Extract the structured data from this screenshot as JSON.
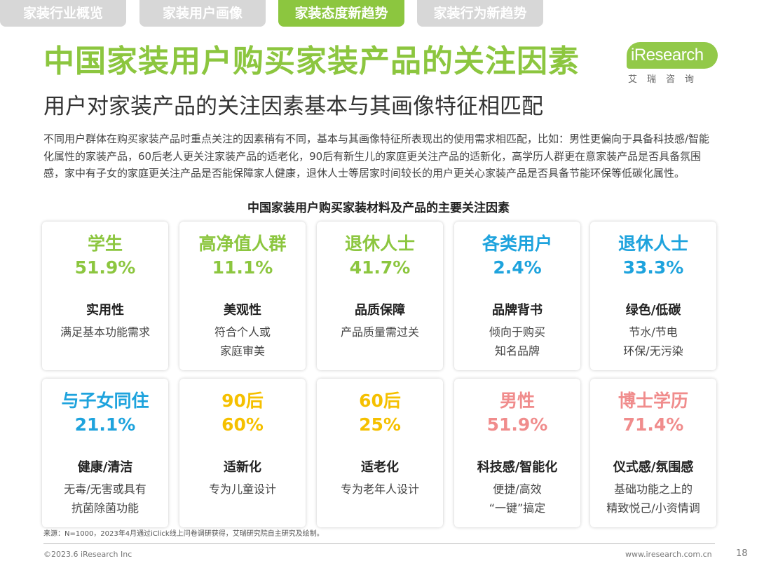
{
  "tabs": [
    {
      "label": "家装行业概览"
    },
    {
      "label": "家装用户画像"
    },
    {
      "label": "家装态度新趋势"
    },
    {
      "label": "家装行为新趋势"
    }
  ],
  "title": "中国家装用户购买家装产品的关注因素",
  "logo": {
    "text": "iResearch",
    "sub": "艾瑞咨询"
  },
  "subtitle": "用户对家装产品的关注因素基本与其画像特征相匹配",
  "paragraph": "不同用户群体在购买家装产品时重点关注的因素稍有不同，基本与其画像特征所表现出的使用需求相匹配，比如：男性更偏向于具备科技感/智能化属性的家装产品，60后老人更关注家装产品的适老化，90后有新生儿的家庭更关注产品的适新化，高学历人群更在意家装产品是否具备氛围感，家中有子女的家庭更关注产品是否能保障家人健康，退休人士等居家时间较长的用户更关心家装产品是否具备节能环保等低碳化属性。",
  "chart_title": "中国家装用户购买家装材料及产品的主要关注因素",
  "colors": {
    "green": "#8cc63f",
    "blue": "#1ea3dd",
    "yellow": "#f5c000",
    "pink": "#f08c8c",
    "tab_gray": "#d7d7d7"
  },
  "cards": [
    {
      "group": "学生",
      "pct": "51.9%",
      "factor": "实用性",
      "desc": [
        "满足基本功能需求"
      ],
      "color": "#8cc63f"
    },
    {
      "group": "高净值人群",
      "pct": "11.1%",
      "factor": "美观性",
      "desc": [
        "符合个人或",
        "家庭审美"
      ],
      "color": "#8cc63f"
    },
    {
      "group": "退休人士",
      "pct": "41.7%",
      "factor": "品质保障",
      "desc": [
        "产品质量需过关"
      ],
      "color": "#8cc63f"
    },
    {
      "group": "各类用户",
      "pct": "2.4%",
      "factor": "品牌背书",
      "desc": [
        "倾向于购买",
        "知名品牌"
      ],
      "color": "#1ea3dd"
    },
    {
      "group": "退休人士",
      "pct": "33.3%",
      "factor": "绿色/低碳",
      "desc": [
        "节水/节电",
        "环保/无污染"
      ],
      "color": "#1ea3dd"
    },
    {
      "group": "与子女同住",
      "pct": "21.1%",
      "factor": "健康/清洁",
      "desc": [
        "无毒/无害或具有",
        "抗菌除菌功能"
      ],
      "color": "#1ea3dd"
    },
    {
      "group": "90后",
      "pct": "60%",
      "factor": "适新化",
      "desc": [
        "专为儿童设计"
      ],
      "color": "#f5c000"
    },
    {
      "group": "60后",
      "pct": "25%",
      "factor": "适老化",
      "desc": [
        "专为老年人设计"
      ],
      "color": "#f5c000"
    },
    {
      "group": "男性",
      "pct": "51.9%",
      "factor": "科技感/智能化",
      "desc": [
        "便捷/高效",
        "“一键”搞定"
      ],
      "color": "#f08c8c"
    },
    {
      "group": "博士学历",
      "pct": "71.4%",
      "factor": "仪式感/氛围感",
      "desc": [
        "基础功能之上的",
        "精致悦己/小资情调"
      ],
      "color": "#f08c8c"
    }
  ],
  "source": "来源：N=1000，2023年4月通过iClick线上问卷调研获得，艾瑞研究院自主研究及绘制。",
  "footer": {
    "copyright": "©2023.6 iResearch Inc",
    "site": "www.iresearch.com.cn",
    "page": "18"
  }
}
